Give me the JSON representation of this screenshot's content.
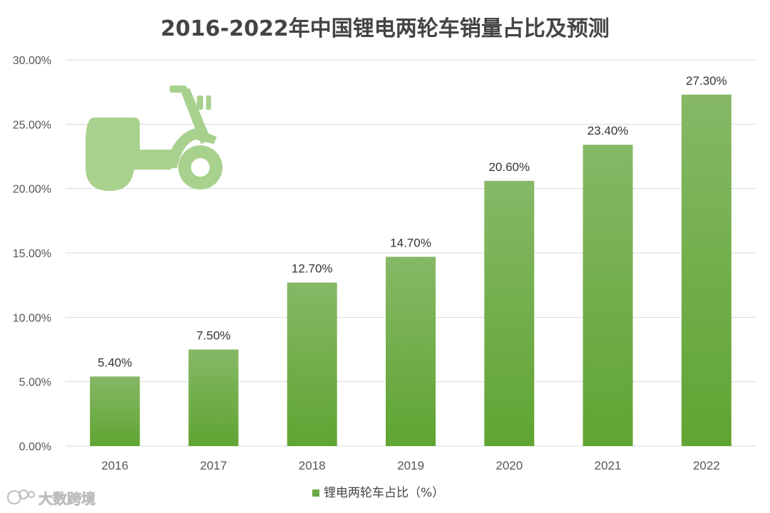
{
  "chart_data": {
    "type": "bar",
    "title": "2016-2022年中国锂电两轮车销量占比及预测",
    "categories": [
      "2016",
      "2017",
      "2018",
      "2019",
      "2020",
      "2021",
      "2022"
    ],
    "series": [
      {
        "name": "锂电两轮车占比（%）",
        "values": [
          5.4,
          7.5,
          12.7,
          14.7,
          20.6,
          23.4,
          27.3
        ],
        "data_labels": [
          "5.40%",
          "7.50%",
          "12.70%",
          "14.70%",
          "20.60%",
          "23.40%",
          "27.30%"
        ]
      }
    ],
    "y_ticks": [
      "0.00%",
      "5.00%",
      "10.00%",
      "15.00%",
      "20.00%",
      "25.00%",
      "30.00%"
    ],
    "ylim": [
      0,
      30
    ],
    "grid": true,
    "legend_position": "bottom",
    "colors": {
      "bar_top": "#86b866",
      "bar_bottom": "#5fa532",
      "gridline": "#d9d9d9",
      "icon": "#a9d18e"
    },
    "icon": "scooter-icon",
    "watermark": "大数跨境"
  }
}
